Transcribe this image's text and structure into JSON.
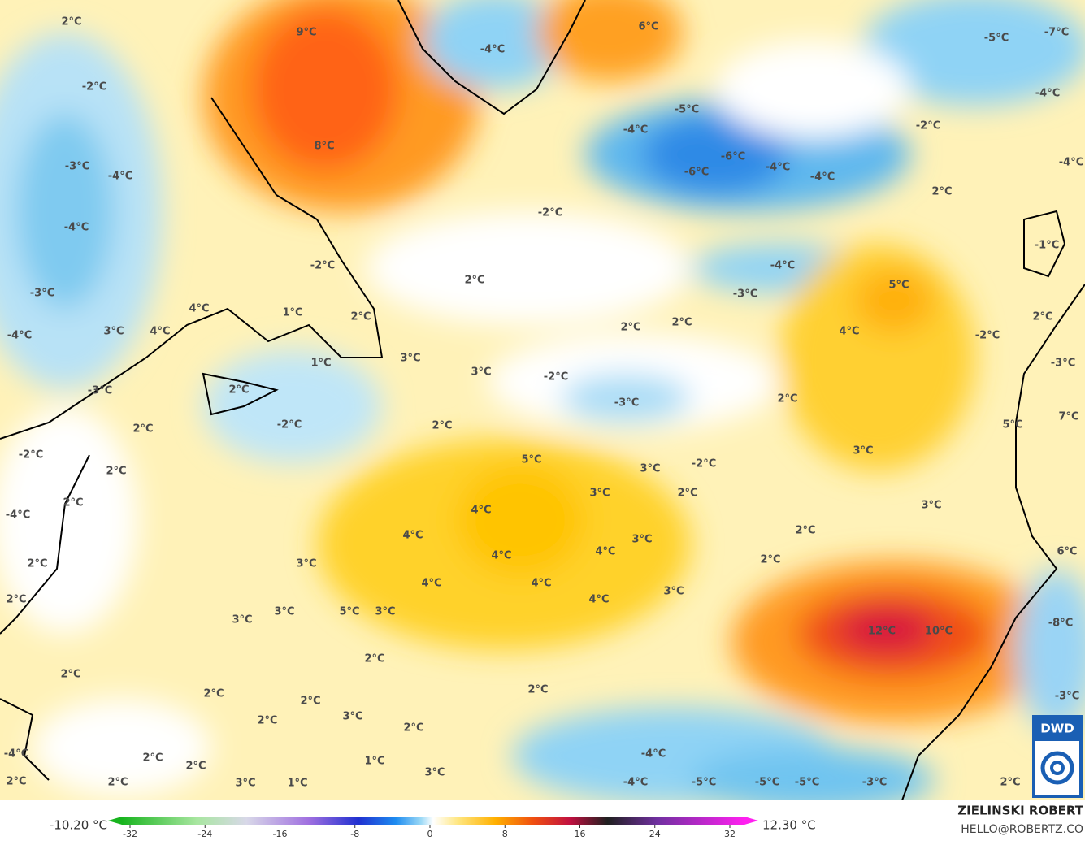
{
  "map": {
    "labels": [
      "2°C",
      "9°C",
      "-4°C",
      "6°C",
      "-5°C",
      "-7°C",
      "-2°C",
      "-5°C",
      "-4°C",
      "-4°C",
      "-2°C",
      "8°C",
      "-6°C",
      "-3°C",
      "-4°C",
      "-6°C",
      "-4°C",
      "-4°C",
      "-4°C",
      "2°C",
      "-2°C",
      "-4°C",
      "-2°C",
      "-4°C",
      "-1°C",
      "2°C",
      "5°C",
      "-3°C",
      "-3°C",
      "4°C",
      "1°C",
      "2°C",
      "2°C",
      "2°C",
      "2°C",
      "-4°C",
      "3°C",
      "4°C",
      "4°C",
      "-2°C",
      "1°C",
      "3°C",
      "-3°C",
      "3°C",
      "-2°C",
      "-3°C",
      "2°C",
      "2°C",
      "-3°C",
      "2°C",
      "-2°C",
      "2°C",
      "5°C",
      "7°C",
      "3°C",
      "-2°C",
      "5°C",
      "3°C",
      "-2°C",
      "2°C",
      "2°C",
      "3°C",
      "2°C",
      "-4°C",
      "4°C",
      "3°C",
      "2°C",
      "4°C",
      "3°C",
      "4°C",
      "4°C",
      "2°C",
      "6°C",
      "2°C",
      "3°C",
      "4°C",
      "4°C",
      "3°C",
      "4°C",
      "2°C",
      "3°C",
      "5°C",
      "3°C",
      "3°C",
      "12°C",
      "10°C",
      "-8°C",
      "2°C",
      "2°C",
      "2°C",
      "2°C",
      "2°C",
      "3°C",
      "-3°C",
      "2°C",
      "2°C",
      "-4°C",
      "-4°C",
      "2°C",
      "1°C",
      "2°C",
      "3°C",
      "2°C",
      "2°C",
      "3°C",
      "1°C",
      "-4°C",
      "-5°C",
      "-5°C",
      "-5°C",
      "-3°C",
      "2°C"
    ]
  },
  "legend": {
    "min_label": "-10.20 °C",
    "max_label": "12.30 °C",
    "ticks": [
      -32,
      -24,
      -16,
      -8,
      0,
      8,
      16,
      24,
      32
    ]
  },
  "credit": {
    "author": "ZIELINSKI ROBERT",
    "contact": "HELLO@ROBERTZ.CO",
    "logo": "DWD"
  }
}
